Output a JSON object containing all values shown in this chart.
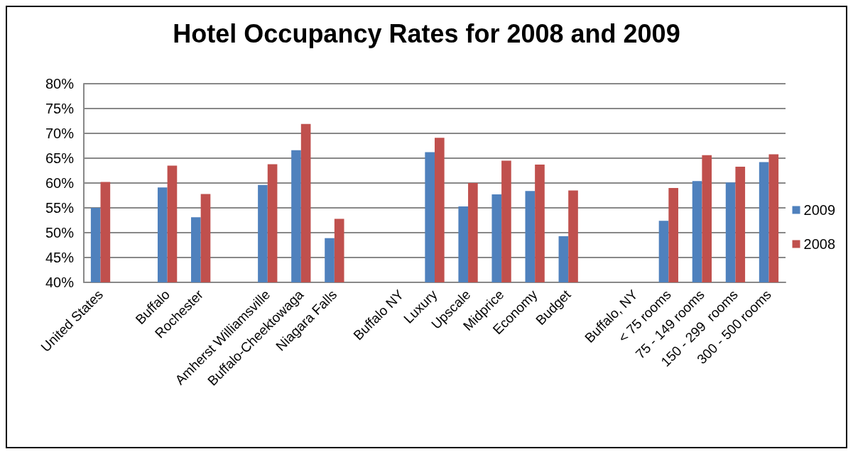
{
  "chart_data": {
    "type": "bar",
    "title": "Hotel Occupancy Rates for 2008 and 2009",
    "categories": [
      "United States",
      null,
      "Buffalo",
      "Rochester",
      null,
      "Amherst Williamsville",
      "Buffalo-Cheektowaga",
      "Niagara Falls",
      null,
      "Buffalo NY",
      "Luxury",
      "Upscale",
      "Midprice",
      "Economy",
      "Budget",
      null,
      "Buffalo, NY",
      "< 75 rooms",
      "75 - 149 rooms",
      "150 - 299  rooms",
      "300 - 500 rooms"
    ],
    "series": [
      {
        "name": "2009",
        "color": "#4f81bd",
        "values": [
          55.0,
          null,
          59.1,
          53.1,
          null,
          59.6,
          66.6,
          48.9,
          null,
          null,
          66.2,
          55.3,
          57.7,
          58.4,
          49.3,
          null,
          null,
          52.4,
          60.4,
          60.1,
          64.2
        ]
      },
      {
        "name": "2008",
        "color": "#c0504d",
        "values": [
          60.2,
          null,
          63.5,
          57.8,
          null,
          63.8,
          71.9,
          52.8,
          null,
          null,
          69.1,
          60.0,
          64.5,
          63.7,
          58.5,
          null,
          null,
          59.0,
          65.6,
          63.3,
          65.8
        ]
      }
    ],
    "ylim": [
      40,
      80
    ],
    "yticks": [
      {
        "value": 40,
        "label": "40%"
      },
      {
        "value": 45,
        "label": "45%"
      },
      {
        "value": 50,
        "label": "50%"
      },
      {
        "value": 55,
        "label": "55%"
      },
      {
        "value": 60,
        "label": "60%"
      },
      {
        "value": 65,
        "label": "65%"
      },
      {
        "value": 70,
        "label": "70%"
      },
      {
        "value": 75,
        "label": "75%"
      },
      {
        "value": 80,
        "label": "80%"
      }
    ],
    "grid": "y",
    "legend": "right"
  }
}
